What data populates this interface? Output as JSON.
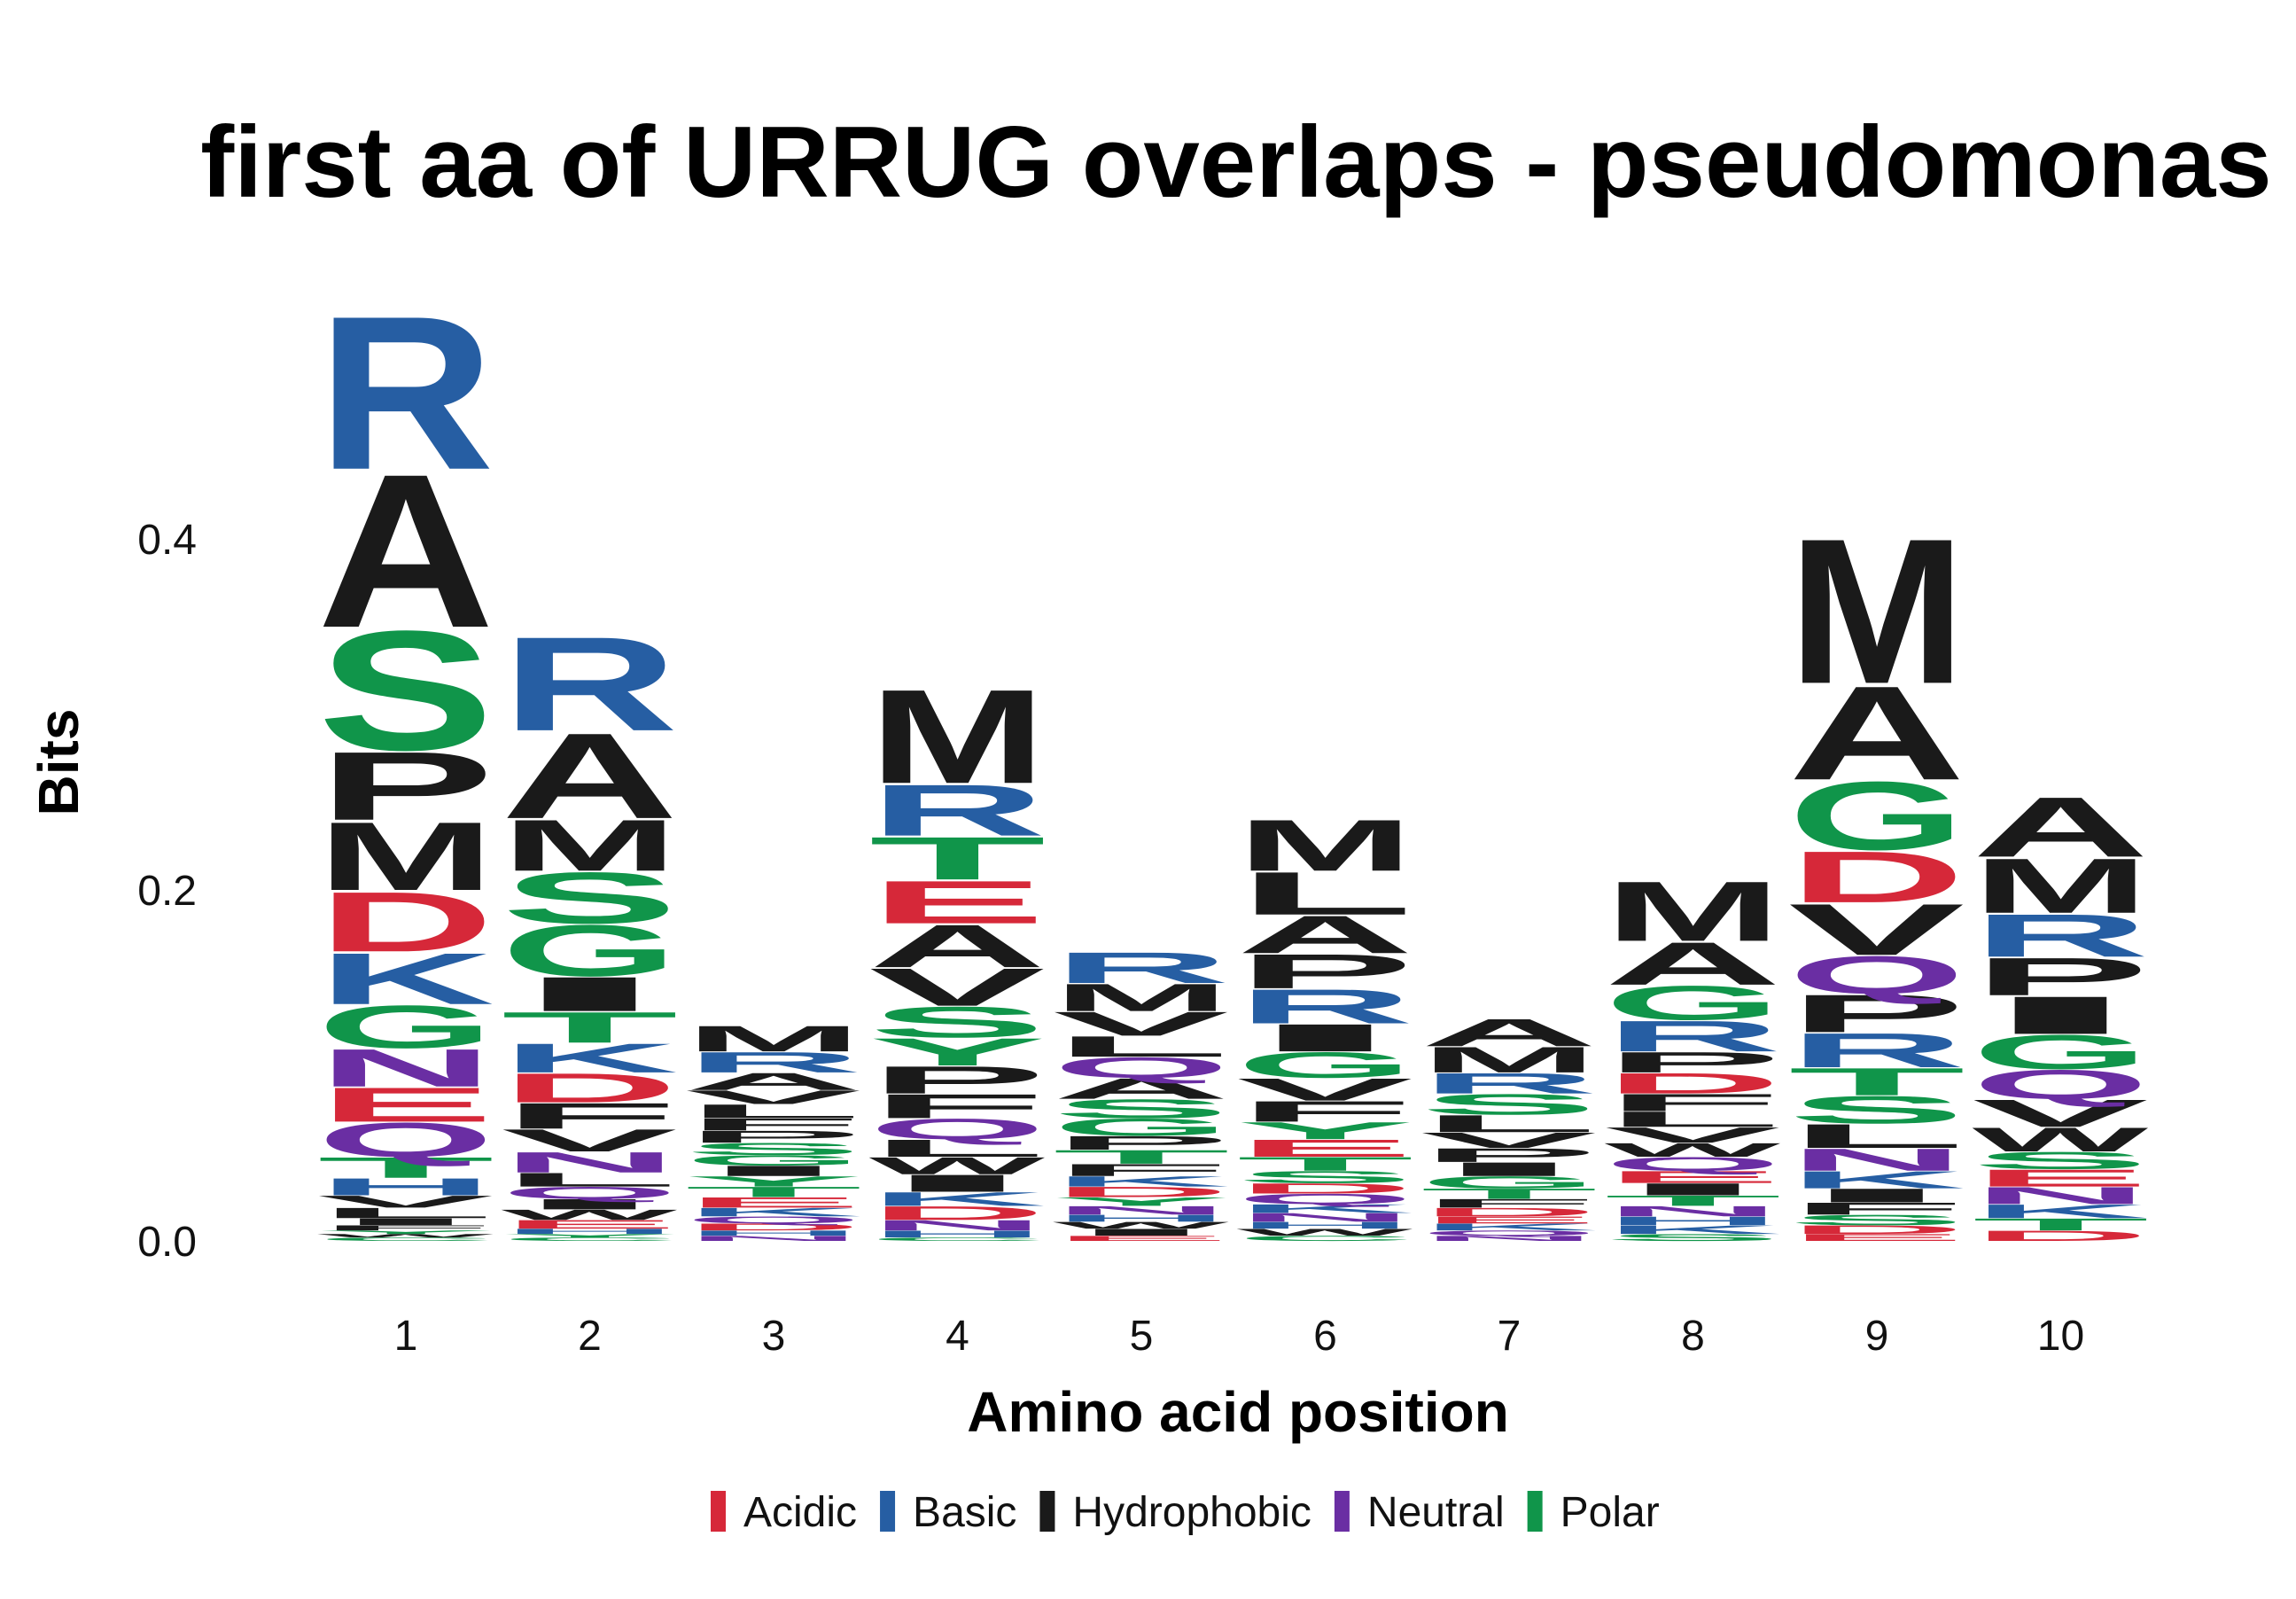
{
  "chart_data": {
    "type": "sequence-logo",
    "title": "first aa of URRUG overlaps - pseudomonas",
    "xlabel": "Amino acid position",
    "ylabel": "Bits",
    "ylim": [
      0,
      0.55
    ],
    "y_ticks": [
      "0.0",
      "0.2",
      "0.4"
    ],
    "y_tick_values": [
      0.0,
      0.2,
      0.4
    ],
    "grid": false,
    "legend_position": "bottom",
    "legend": [
      {
        "label": "Acidic",
        "color": "#d62839"
      },
      {
        "label": "Basic",
        "color": "#265ea3"
      },
      {
        "label": "Hydrophobic",
        "color": "#1a1a1a"
      },
      {
        "label": "Neutral",
        "color": "#6a2ea3"
      },
      {
        "label": "Polar",
        "color": "#10954a"
      }
    ],
    "residue_classes": {
      "D": "Acidic",
      "E": "Acidic",
      "R": "Basic",
      "K": "Basic",
      "H": "Basic",
      "A": "Hydrophobic",
      "V": "Hydrophobic",
      "L": "Hydrophobic",
      "I": "Hydrophobic",
      "M": "Hydrophobic",
      "F": "Hydrophobic",
      "W": "Hydrophobic",
      "P": "Hydrophobic",
      "N": "Neutral",
      "Q": "Neutral",
      "S": "Polar",
      "T": "Polar",
      "G": "Polar",
      "Y": "Polar",
      "C": "Polar"
    },
    "positions": [
      {
        "label": "1",
        "letters": [
          {
            "aa": "C",
            "bits": 0.002
          },
          {
            "aa": "W",
            "bits": 0.002
          },
          {
            "aa": "Y",
            "bits": 0.002
          },
          {
            "aa": "F",
            "bits": 0.003
          },
          {
            "aa": "I",
            "bits": 0.004
          },
          {
            "aa": "L",
            "bits": 0.006
          },
          {
            "aa": "V",
            "bits": 0.007
          },
          {
            "aa": "H",
            "bits": 0.01
          },
          {
            "aa": "T",
            "bits": 0.012
          },
          {
            "aa": "Q",
            "bits": 0.02
          },
          {
            "aa": "E",
            "bits": 0.02
          },
          {
            "aa": "N",
            "bits": 0.022
          },
          {
            "aa": "G",
            "bits": 0.025
          },
          {
            "aa": "K",
            "bits": 0.03
          },
          {
            "aa": "D",
            "bits": 0.035
          },
          {
            "aa": "M",
            "bits": 0.04
          },
          {
            "aa": "P",
            "bits": 0.04
          },
          {
            "aa": "S",
            "bits": 0.07
          },
          {
            "aa": "A",
            "bits": 0.09
          },
          {
            "aa": "R",
            "bits": 0.09
          }
        ]
      },
      {
        "label": "2",
        "letters": [
          {
            "aa": "C",
            "bits": 0.002
          },
          {
            "aa": "Y",
            "bits": 0.002
          },
          {
            "aa": "H",
            "bits": 0.003
          },
          {
            "aa": "E",
            "bits": 0.005
          },
          {
            "aa": "W",
            "bits": 0.006
          },
          {
            "aa": "I",
            "bits": 0.006
          },
          {
            "aa": "Q",
            "bits": 0.007
          },
          {
            "aa": "L",
            "bits": 0.008
          },
          {
            "aa": "N",
            "bits": 0.012
          },
          {
            "aa": "V",
            "bits": 0.013
          },
          {
            "aa": "F",
            "bits": 0.015
          },
          {
            "aa": "D",
            "bits": 0.017
          },
          {
            "aa": "K",
            "bits": 0.017
          },
          {
            "aa": "T",
            "bits": 0.018
          },
          {
            "aa": "I",
            "bits": 0.02
          },
          {
            "aa": "G",
            "bits": 0.03
          },
          {
            "aa": "S",
            "bits": 0.03
          },
          {
            "aa": "M",
            "bits": 0.03
          },
          {
            "aa": "A",
            "bits": 0.05
          },
          {
            "aa": "R",
            "bits": 0.055
          }
        ]
      },
      {
        "label": "3",
        "letters": [
          {
            "aa": "N",
            "bits": 0.003
          },
          {
            "aa": "H",
            "bits": 0.003
          },
          {
            "aa": "D",
            "bits": 0.004
          },
          {
            "aa": "Q",
            "bits": 0.004
          },
          {
            "aa": "K",
            "bits": 0.005
          },
          {
            "aa": "E",
            "bits": 0.006
          },
          {
            "aa": "T",
            "bits": 0.006
          },
          {
            "aa": "Y",
            "bits": 0.006
          },
          {
            "aa": "I",
            "bits": 0.006
          },
          {
            "aa": "G",
            "bits": 0.006
          },
          {
            "aa": "S",
            "bits": 0.007
          },
          {
            "aa": "P",
            "bits": 0.007
          },
          {
            "aa": "F",
            "bits": 0.007
          },
          {
            "aa": "L",
            "bits": 0.008
          },
          {
            "aa": "V",
            "bits": 0.008
          },
          {
            "aa": "A",
            "bits": 0.01
          },
          {
            "aa": "R",
            "bits": 0.012
          },
          {
            "aa": "M",
            "bits": 0.015
          }
        ]
      },
      {
        "label": "4",
        "letters": [
          {
            "aa": "C",
            "bits": 0.002
          },
          {
            "aa": "H",
            "bits": 0.004
          },
          {
            "aa": "N",
            "bits": 0.006
          },
          {
            "aa": "D",
            "bits": 0.008
          },
          {
            "aa": "K",
            "bits": 0.008
          },
          {
            "aa": "I",
            "bits": 0.01
          },
          {
            "aa": "W",
            "bits": 0.01
          },
          {
            "aa": "L",
            "bits": 0.01
          },
          {
            "aa": "Q",
            "bits": 0.012
          },
          {
            "aa": "F",
            "bits": 0.014
          },
          {
            "aa": "P",
            "bits": 0.016
          },
          {
            "aa": "Y",
            "bits": 0.016
          },
          {
            "aa": "S",
            "bits": 0.018
          },
          {
            "aa": "V",
            "bits": 0.022
          },
          {
            "aa": "A",
            "bits": 0.025
          },
          {
            "aa": "E",
            "bits": 0.025
          },
          {
            "aa": "T",
            "bits": 0.025
          },
          {
            "aa": "R",
            "bits": 0.03
          },
          {
            "aa": "M",
            "bits": 0.055
          }
        ]
      },
      {
        "label": "5",
        "letters": [
          {
            "aa": "E",
            "bits": 0.003
          },
          {
            "aa": "I",
            "bits": 0.004
          },
          {
            "aa": "W",
            "bits": 0.004
          },
          {
            "aa": "H",
            "bits": 0.004
          },
          {
            "aa": "N",
            "bits": 0.005
          },
          {
            "aa": "Y",
            "bits": 0.005
          },
          {
            "aa": "D",
            "bits": 0.006
          },
          {
            "aa": "K",
            "bits": 0.006
          },
          {
            "aa": "F",
            "bits": 0.007
          },
          {
            "aa": "T",
            "bits": 0.008
          },
          {
            "aa": "P",
            "bits": 0.008
          },
          {
            "aa": "G",
            "bits": 0.01
          },
          {
            "aa": "S",
            "bits": 0.011
          },
          {
            "aa": "A",
            "bits": 0.012
          },
          {
            "aa": "Q",
            "bits": 0.012
          },
          {
            "aa": "L",
            "bits": 0.012
          },
          {
            "aa": "V",
            "bits": 0.014
          },
          {
            "aa": "M",
            "bits": 0.016
          },
          {
            "aa": "R",
            "bits": 0.018
          }
        ]
      },
      {
        "label": "6",
        "letters": [
          {
            "aa": "C",
            "bits": 0.003
          },
          {
            "aa": "W",
            "bits": 0.004
          },
          {
            "aa": "H",
            "bits": 0.004
          },
          {
            "aa": "N",
            "bits": 0.005
          },
          {
            "aa": "K",
            "bits": 0.005
          },
          {
            "aa": "Q",
            "bits": 0.006
          },
          {
            "aa": "D",
            "bits": 0.006
          },
          {
            "aa": "S",
            "bits": 0.007
          },
          {
            "aa": "T",
            "bits": 0.008
          },
          {
            "aa": "E",
            "bits": 0.01
          },
          {
            "aa": "Y",
            "bits": 0.01
          },
          {
            "aa": "F",
            "bits": 0.012
          },
          {
            "aa": "V",
            "bits": 0.013
          },
          {
            "aa": "G",
            "bits": 0.015
          },
          {
            "aa": "I",
            "bits": 0.016
          },
          {
            "aa": "R",
            "bits": 0.02
          },
          {
            "aa": "P",
            "bits": 0.02
          },
          {
            "aa": "A",
            "bits": 0.022
          },
          {
            "aa": "L",
            "bits": 0.025
          },
          {
            "aa": "M",
            "bits": 0.03
          }
        ]
      },
      {
        "label": "7",
        "letters": [
          {
            "aa": "N",
            "bits": 0.003
          },
          {
            "aa": "Q",
            "bits": 0.003
          },
          {
            "aa": "K",
            "bits": 0.004
          },
          {
            "aa": "E",
            "bits": 0.004
          },
          {
            "aa": "D",
            "bits": 0.005
          },
          {
            "aa": "F",
            "bits": 0.005
          },
          {
            "aa": "T",
            "bits": 0.006
          },
          {
            "aa": "G",
            "bits": 0.007
          },
          {
            "aa": "I",
            "bits": 0.008
          },
          {
            "aa": "P",
            "bits": 0.008
          },
          {
            "aa": "V",
            "bits": 0.009
          },
          {
            "aa": "L",
            "bits": 0.01
          },
          {
            "aa": "S",
            "bits": 0.012
          },
          {
            "aa": "R",
            "bits": 0.012
          },
          {
            "aa": "M",
            "bits": 0.015
          },
          {
            "aa": "A",
            "bits": 0.016
          }
        ]
      },
      {
        "label": "8",
        "letters": [
          {
            "aa": "S",
            "bits": 0.004
          },
          {
            "aa": "K",
            "bits": 0.005
          },
          {
            "aa": "H",
            "bits": 0.005
          },
          {
            "aa": "N",
            "bits": 0.006
          },
          {
            "aa": "T",
            "bits": 0.006
          },
          {
            "aa": "I",
            "bits": 0.007
          },
          {
            "aa": "E",
            "bits": 0.007
          },
          {
            "aa": "Q",
            "bits": 0.008
          },
          {
            "aa": "W",
            "bits": 0.008
          },
          {
            "aa": "V",
            "bits": 0.009
          },
          {
            "aa": "L",
            "bits": 0.009
          },
          {
            "aa": "F",
            "bits": 0.01
          },
          {
            "aa": "D",
            "bits": 0.012
          },
          {
            "aa": "P",
            "bits": 0.012
          },
          {
            "aa": "R",
            "bits": 0.018
          },
          {
            "aa": "G",
            "bits": 0.02
          },
          {
            "aa": "A",
            "bits": 0.025
          },
          {
            "aa": "M",
            "bits": 0.035
          }
        ]
      },
      {
        "label": "9",
        "letters": [
          {
            "aa": "E",
            "bits": 0.004
          },
          {
            "aa": "D",
            "bits": 0.005
          },
          {
            "aa": "S",
            "bits": 0.006
          },
          {
            "aa": "F",
            "bits": 0.007
          },
          {
            "aa": "I",
            "bits": 0.008
          },
          {
            "aa": "K",
            "bits": 0.01
          },
          {
            "aa": "N",
            "bits": 0.013
          },
          {
            "aa": "L",
            "bits": 0.014
          },
          {
            "aa": "S",
            "bits": 0.016
          },
          {
            "aa": "T",
            "bits": 0.016
          },
          {
            "aa": "R",
            "bits": 0.02
          },
          {
            "aa": "P",
            "bits": 0.022
          },
          {
            "aa": "Q",
            "bits": 0.022
          },
          {
            "aa": "V",
            "bits": 0.03
          },
          {
            "aa": "D",
            "bits": 0.03
          },
          {
            "aa": "G",
            "bits": 0.04
          },
          {
            "aa": "A",
            "bits": 0.055
          },
          {
            "aa": "M",
            "bits": 0.085
          }
        ]
      },
      {
        "label": "10",
        "letters": [
          {
            "aa": "D",
            "bits": 0.006
          },
          {
            "aa": "T",
            "bits": 0.007
          },
          {
            "aa": "K",
            "bits": 0.008
          },
          {
            "aa": "N",
            "bits": 0.01
          },
          {
            "aa": "E",
            "bits": 0.01
          },
          {
            "aa": "S",
            "bits": 0.01
          },
          {
            "aa": "W",
            "bits": 0.014
          },
          {
            "aa": "V",
            "bits": 0.016
          },
          {
            "aa": "Q",
            "bits": 0.017
          },
          {
            "aa": "G",
            "bits": 0.02
          },
          {
            "aa": "I",
            "bits": 0.022
          },
          {
            "aa": "P",
            "bits": 0.022
          },
          {
            "aa": "R",
            "bits": 0.025
          },
          {
            "aa": "M",
            "bits": 0.032
          },
          {
            "aa": "A",
            "bits": 0.035
          }
        ]
      }
    ]
  }
}
